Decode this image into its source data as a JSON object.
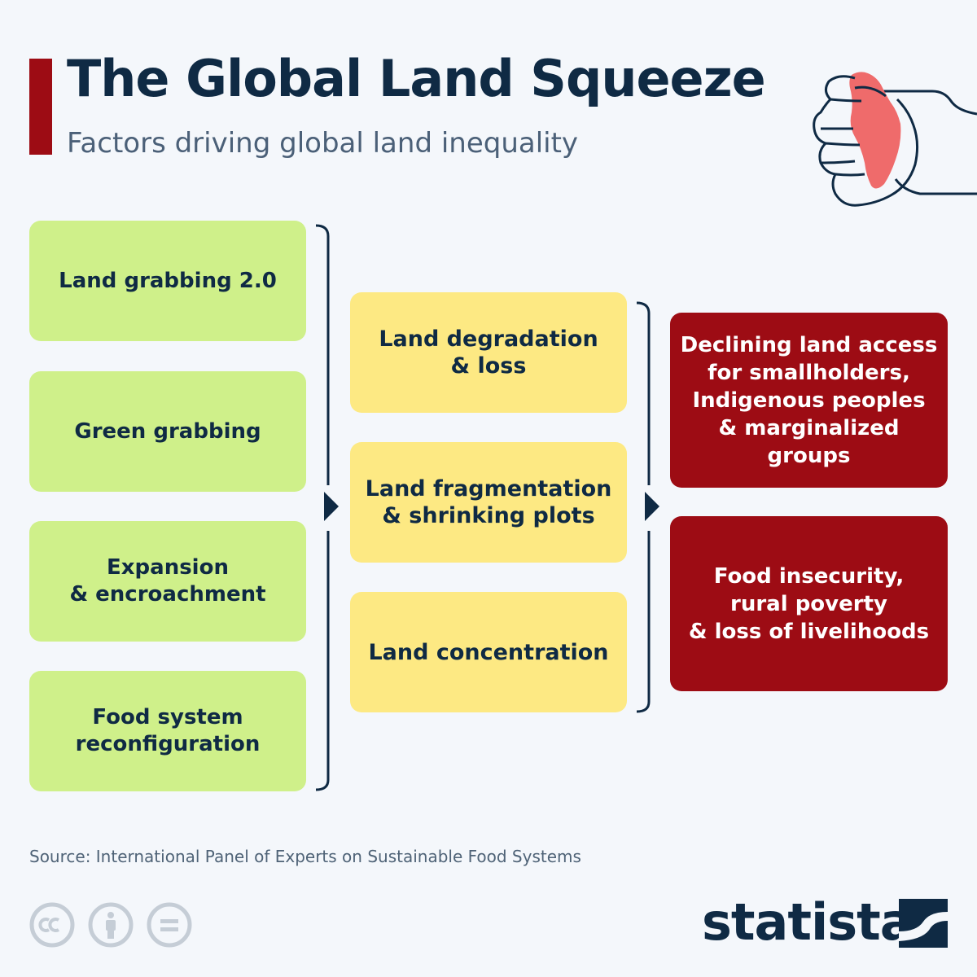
{
  "header": {
    "title": "The Global Land Squeeze",
    "subtitle": "Factors driving global land inequality"
  },
  "drivers": [
    "Land grabbing 2.0",
    "Green grabbing",
    "Expansion\n& encroachment",
    "Food system\nreconfiguration"
  ],
  "processes": [
    "Land degradation\n& loss",
    "Land fragmentation\n& shrinking plots",
    "Land concentration"
  ],
  "outcomes": [
    "Declining land access\nfor smallholders,\nIndigenous peoples\n& marginalized groups",
    "Food insecurity,\nrural poverty\n& loss of livelihoods"
  ],
  "footer": {
    "source": "Source: International Panel of Experts on Sustainable Food Systems",
    "brand": "statista"
  },
  "colors": {
    "accent": "#9d0c14",
    "driver_box": "#cff08a",
    "process_box": "#fde983",
    "outcome_box": "#9d0c14",
    "navy": "#0f2a44",
    "map_fill": "#ef6b6b"
  },
  "icons": [
    "fist-globe-icon",
    "arrow-right-icon",
    "cc-icon",
    "person-icon",
    "equals-icon",
    "statista-logo-icon"
  ]
}
